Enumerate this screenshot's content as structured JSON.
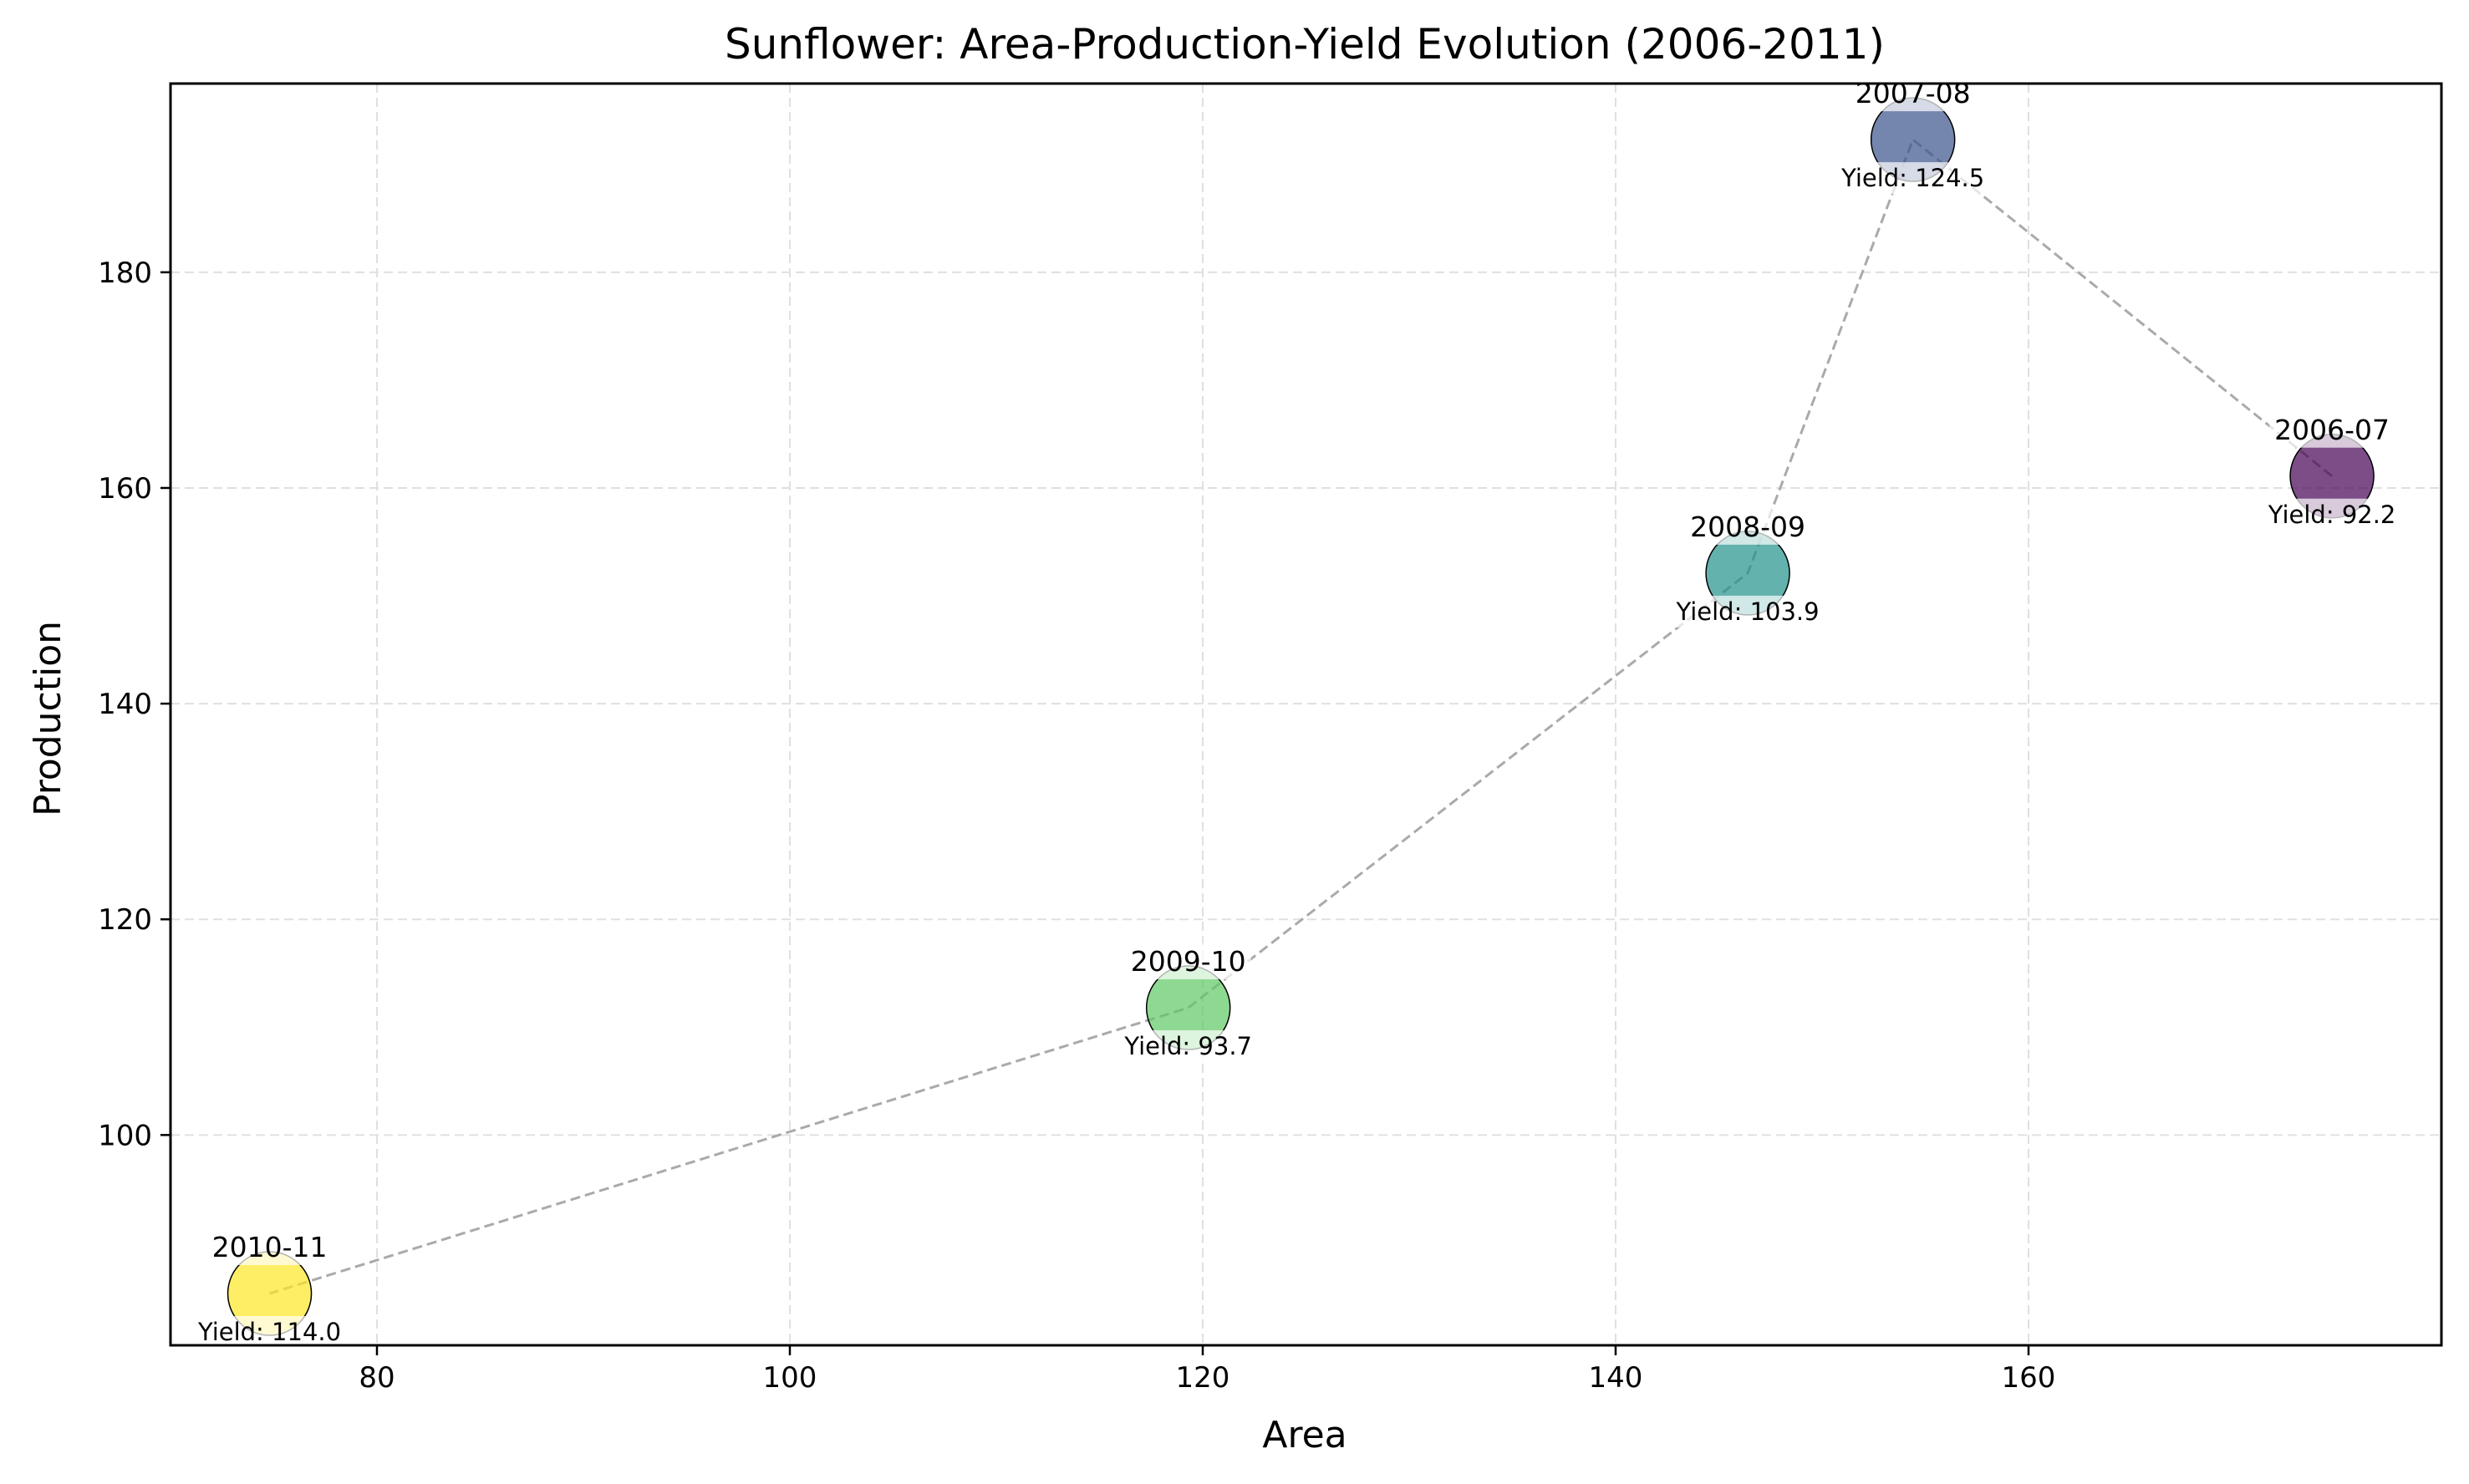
{
  "chart_data": {
    "type": "scatter",
    "title": "Sunflower: Area-Production-Yield Evolution (2006-2011)",
    "xlabel": "Area",
    "ylabel": "Production",
    "xlim": [
      70,
      180
    ],
    "ylim": [
      80.5,
      197.5
    ],
    "xticks": [
      80,
      100,
      120,
      140,
      160
    ],
    "yticks": [
      100,
      120,
      140,
      160,
      180
    ],
    "grid": true,
    "connector": {
      "style": "dashed",
      "color": "#aaaaaa",
      "order": [
        "2006-07",
        "2007-08",
        "2008-09",
        "2009-10",
        "2010-11"
      ]
    },
    "points": [
      {
        "label": "2006-07",
        "area": 174.7,
        "production": 161.1,
        "yield": 92.2,
        "yield_text": "Yield: 92.2",
        "color": "#440154"
      },
      {
        "label": "2007-08",
        "area": 154.4,
        "production": 192.3,
        "yield": 124.5,
        "yield_text": "Yield: 124.5",
        "color": "#3b528b"
      },
      {
        "label": "2008-09",
        "area": 146.4,
        "production": 152.1,
        "yield": 103.9,
        "yield_text": "Yield: 103.9",
        "color": "#21918c"
      },
      {
        "label": "2009-10",
        "area": 119.3,
        "production": 111.8,
        "yield": 93.7,
        "yield_text": "Yield: 93.7",
        "color": "#5ec962"
      },
      {
        "label": "2010-11",
        "area": 74.8,
        "production": 85.3,
        "yield": 114.0,
        "yield_text": "Yield: 114.0",
        "color": "#fde725"
      }
    ]
  }
}
